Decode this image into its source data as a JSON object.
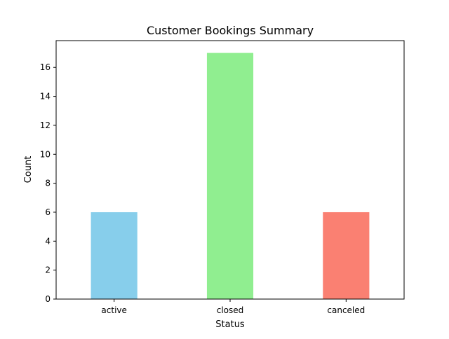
{
  "chart_data": {
    "type": "bar",
    "title": "Customer Bookings Summary",
    "xlabel": "Status",
    "ylabel": "Count",
    "categories": [
      "active",
      "closed",
      "canceled"
    ],
    "values": [
      6,
      17,
      6
    ],
    "colors": [
      "#87ceeb",
      "#90ee90",
      "#fa8072"
    ],
    "ylim": [
      0,
      17.85
    ],
    "yticks": [
      0,
      2,
      4,
      6,
      8,
      10,
      12,
      14,
      16
    ],
    "grid": false,
    "legend": "none"
  }
}
